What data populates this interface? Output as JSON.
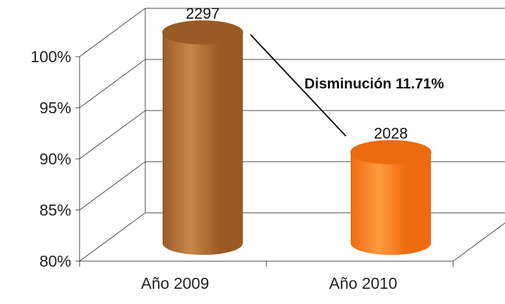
{
  "chart_data": {
    "type": "bar",
    "categories": [
      "Año 2009",
      "Año 2010"
    ],
    "values": [
      100,
      88.29
    ],
    "data_labels": [
      "2297",
      "2028"
    ],
    "y_ticks": [
      "80%",
      "85%",
      "90%",
      "95%",
      "100%"
    ],
    "ylim": [
      80,
      100
    ],
    "grid": true,
    "annotation": "Disminución  11.71%",
    "colors": {
      "bar_2009": "#9b5a24",
      "bar_2009_light": "#c7884a",
      "bar_2010": "#ee6a0e",
      "bar_2010_light": "#ff9a40",
      "grid": "#444444"
    }
  }
}
